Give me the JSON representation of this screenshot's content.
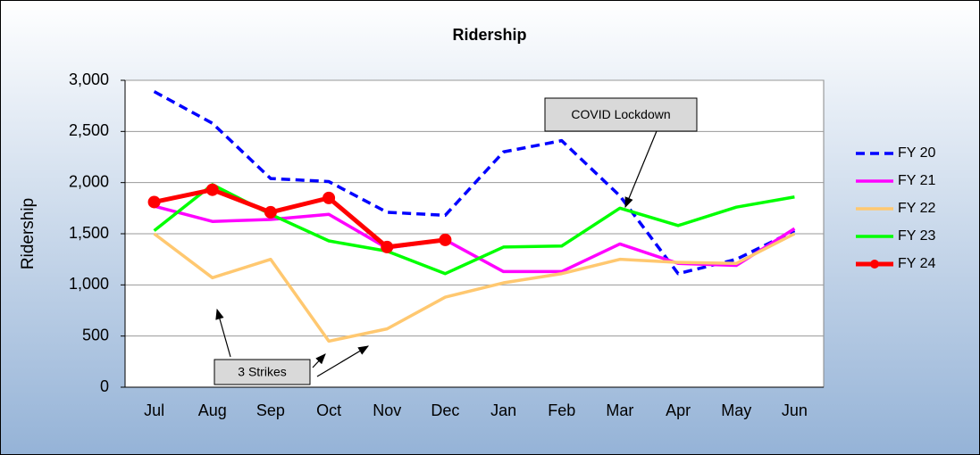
{
  "chart_data": {
    "type": "line",
    "title": "Ridership",
    "y_label": "Ridership",
    "categories": [
      "Jul",
      "Aug",
      "Sep",
      "Oct",
      "Nov",
      "Dec",
      "Jan",
      "Feb",
      "Mar",
      "Apr",
      "May",
      "Jun"
    ],
    "series": [
      {
        "name": "FY 20",
        "color": "#0000ff",
        "dash": true,
        "values": [
          2890,
          2580,
          2040,
          2010,
          1710,
          1680,
          2300,
          2410,
          1870,
          1110,
          1250,
          1530
        ]
      },
      {
        "name": "FY 21",
        "color": "#ff00ff",
        "values": [
          1770,
          1620,
          1640,
          1690,
          1360,
          1440,
          1130,
          1130,
          1400,
          1210,
          1190,
          1550
        ]
      },
      {
        "name": "FY 22",
        "color": "#ffc870",
        "values": [
          1500,
          1070,
          1250,
          450,
          570,
          880,
          1020,
          1110,
          1250,
          1220,
          1210,
          1500
        ]
      },
      {
        "name": "FY 23",
        "color": "#00ff00",
        "values": [
          1530,
          1980,
          1690,
          1430,
          1330,
          1110,
          1370,
          1380,
          1750,
          1580,
          1760,
          1860
        ]
      },
      {
        "name": "FY 24",
        "color": "#ff0000",
        "marker": true,
        "values": [
          1810,
          1930,
          1710,
          1850,
          1370,
          1440,
          null,
          null,
          null,
          null,
          null,
          null
        ]
      }
    ],
    "ylim": [
      0,
      3000
    ],
    "yticks": [
      0,
      {
        "value": 500,
        "label": "500"
      },
      {
        "value": 1000,
        "label": "1,000"
      },
      {
        "value": 1500,
        "label": "1,500"
      },
      {
        "value": 2000,
        "label": "2,000"
      },
      {
        "value": 2500,
        "label": "2,500"
      },
      {
        "value": 3000,
        "label": "3,000"
      }
    ],
    "grid": true,
    "legend": "right",
    "annotations": [
      {
        "text": "COVID Lockdown"
      },
      {
        "text": "3 Strikes"
      }
    ]
  }
}
